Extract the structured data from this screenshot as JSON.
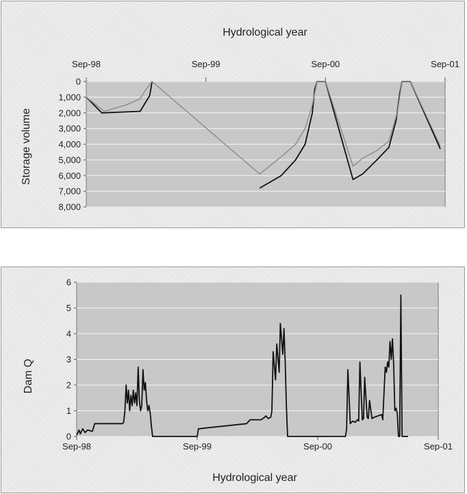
{
  "chart_data": [
    {
      "type": "line",
      "title": "Hydrological year",
      "xlabel": "",
      "ylabel": "Storage volume",
      "x_ticks": [
        "Sep-98",
        "Sep-99",
        "Sep-00",
        "Sep-01"
      ],
      "y_ticks": [
        "0",
        "1,000",
        "2,000",
        "3,000",
        "4,000",
        "5,000",
        "6,000",
        "7,000",
        "8,000"
      ],
      "ylim": [
        0,
        8000
      ],
      "y_inverted": true,
      "xlim": [
        1998.67,
        2001.67
      ],
      "grid": true,
      "legend": "none",
      "colors": {
        "plot_bg": "#c8c8c8",
        "series_dark": "#111111",
        "series_light": "#8a8a8a",
        "grid": "#ffffff"
      },
      "series": [
        {
          "color": "#111111",
          "x": [
            1998.67,
            1998.8,
            1999.12,
            1999.2,
            1999.22,
            1999.67,
            2000.12,
            2000.3,
            2000.42,
            2000.5,
            2000.56,
            2000.58,
            2000.6,
            2000.67,
            2000.9,
            2000.98,
            2001.02,
            2001.1,
            2001.2,
            2001.26,
            2001.29,
            2001.31,
            2001.38,
            2001.63
          ],
          "y": [
            1000,
            2000,
            1900,
            900,
            0,
            null,
            6800,
            6000,
            5000,
            4000,
            2000,
            500,
            0,
            0,
            6250,
            5900,
            5600,
            5000,
            4200,
            2500,
            800,
            0,
            0,
            4300
          ]
        },
        {
          "color": "#8a8a8a",
          "x": [
            1998.67,
            1998.82,
            1999.0,
            1999.12,
            1999.17,
            1999.22,
            2000.12,
            2000.3,
            2000.42,
            2000.5,
            2000.56,
            2000.6,
            2000.67,
            2000.9,
            2000.98,
            2001.1,
            2001.2,
            2001.27,
            2001.31,
            2001.38,
            2001.63
          ],
          "y": [
            1000,
            1900,
            1500,
            1100,
            500,
            0,
            5900,
            4800,
            4000,
            3000,
            1500,
            0,
            0,
            5400,
            4900,
            4400,
            3800,
            2000,
            0,
            0,
            4100
          ]
        }
      ]
    },
    {
      "type": "line",
      "title": "",
      "xlabel": "Hydrological year",
      "ylabel": "Dam Q",
      "x_ticks": [
        "Sep-98",
        "Sep-99",
        "Sep-00",
        "Sep-01"
      ],
      "y_ticks": [
        "0",
        "1",
        "2",
        "3",
        "4",
        "5",
        "6"
      ],
      "ylim": [
        0,
        6
      ],
      "xlim": [
        1998.67,
        2001.67
      ],
      "grid": true,
      "legend": "none",
      "colors": {
        "plot_bg": "#c8c8c8",
        "series_dark": "#111111",
        "grid": "#ffffff"
      },
      "series": [
        {
          "color": "#111111",
          "x": [
            1998.67,
            1998.69,
            1998.7,
            1998.72,
            1998.74,
            1998.76,
            1998.8,
            1998.82,
            1999.05,
            1999.06,
            1999.07,
            1999.08,
            1999.09,
            1999.1,
            1999.11,
            1999.12,
            1999.13,
            1999.14,
            1999.15,
            1999.16,
            1999.17,
            1999.18,
            1999.19,
            1999.2,
            1999.21,
            1999.22,
            1999.23,
            1999.24,
            1999.25,
            1999.26,
            1999.27,
            1999.28,
            1999.29,
            1999.3,
            1999.31,
            1999.32,
            1999.33,
            1999.34,
            1999.67,
            1999.68,
            2000.08,
            2000.09,
            2000.1,
            2000.11,
            2000.2,
            2000.23,
            2000.24,
            2000.26,
            2000.28,
            2000.29,
            2000.3,
            2000.32,
            2000.33,
            2000.35,
            2000.36,
            2000.38,
            2000.39,
            2000.4,
            2000.41,
            2000.42,
            2000.44,
            2000.45,
            2000.46,
            2000.47,
            2000.9,
            2000.91,
            2000.92,
            2000.94,
            2000.96,
            2000.98,
            2000.99,
            2001.0,
            2001.01,
            2001.02,
            2001.04,
            2001.05,
            2001.06,
            2001.08,
            2001.09,
            2001.1,
            2001.12,
            2001.14,
            2001.2,
            2001.21,
            2001.22,
            2001.23,
            2001.24,
            2001.25,
            2001.26,
            2001.27,
            2001.28,
            2001.29,
            2001.3,
            2001.31,
            2001.32,
            2001.33,
            2001.34,
            2001.35,
            2001.36,
            2001.37,
            2001.38,
            2001.39,
            2001.4,
            2001.41,
            2001.42
          ],
          "y": [
            0.05,
            0.25,
            0.1,
            0.3,
            0.15,
            0.25,
            0.2,
            0.5,
            0.5,
            0.55,
            1.0,
            2.0,
            1.3,
            1.8,
            1.0,
            1.6,
            1.2,
            1.8,
            1.3,
            1.7,
            1.2,
            2.7,
            1.4,
            1.0,
            1.2,
            2.6,
            1.8,
            2.1,
            1.4,
            1.0,
            1.2,
            0.9,
            0.4,
            0.0,
            0.0,
            0.0,
            0.0,
            0.0,
            0.0,
            0.3,
            0.5,
            0.55,
            0.6,
            0.65,
            0.65,
            0.75,
            0.8,
            0.7,
            0.75,
            1.0,
            3.3,
            2.2,
            3.6,
            2.5,
            4.4,
            3.2,
            4.2,
            2.9,
            1.2,
            0.0,
            0.0,
            0.0,
            0.0,
            0.0,
            0.0,
            0.3,
            2.6,
            0.5,
            0.6,
            0.55,
            0.6,
            0.65,
            0.6,
            2.9,
            0.65,
            0.7,
            2.3,
            0.75,
            0.7,
            1.4,
            0.7,
            0.75,
            0.85,
            0.65,
            1.7,
            2.7,
            2.5,
            2.9,
            2.7,
            3.7,
            3.0,
            3.8,
            2.8,
            1.0,
            1.1,
            0.9,
            0.0,
            0.0,
            5.5,
            0.0,
            0.0,
            0.0,
            0.0,
            0.0,
            0.0
          ]
        }
      ]
    }
  ]
}
